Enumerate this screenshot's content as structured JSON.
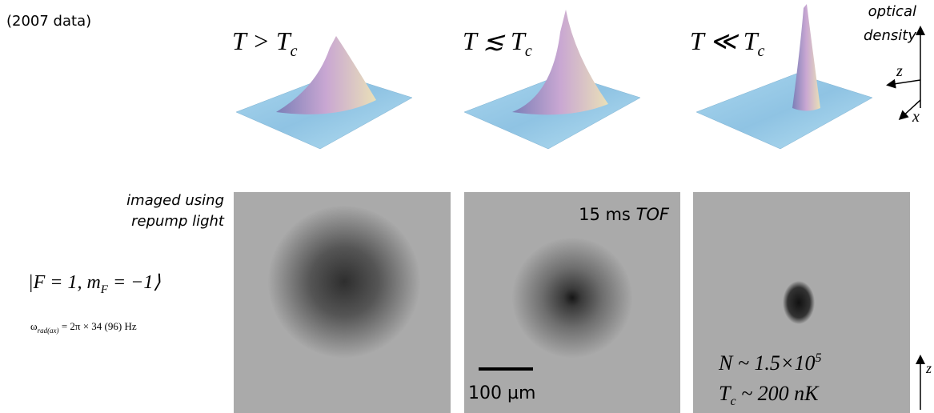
{
  "header": {
    "subtitle": "(2007 data)"
  },
  "axes3d": {
    "label": [
      "optical",
      "density"
    ],
    "z": "z",
    "x": "x"
  },
  "panels": [
    {
      "label": {
        "main": "T > T",
        "sub": "c"
      }
    },
    {
      "label": {
        "main": "T ≲ T",
        "sub": "c"
      }
    },
    {
      "label": {
        "main": "T ≪ T",
        "sub": "c"
      }
    }
  ],
  "imaging": {
    "lines": [
      "imaged using",
      "repump light"
    ]
  },
  "state": {
    "pre": "|F = 1, m",
    "sub": "F",
    "post": " = −1⟩"
  },
  "trap": {
    "pre": "ω",
    "sub": "rad(ax)",
    "post": " = 2π × 34 (96) Hz"
  },
  "tof": {
    "time": "15 ms ",
    "unit": "TOF"
  },
  "scale_bar": "100 µm",
  "atoms": {
    "pre": "N ~ 1.5×10",
    "sup": "5"
  },
  "temperature": {
    "pre": "T",
    "sub": "c",
    "post": " ~ 200 nK"
  },
  "image_axis": "z"
}
